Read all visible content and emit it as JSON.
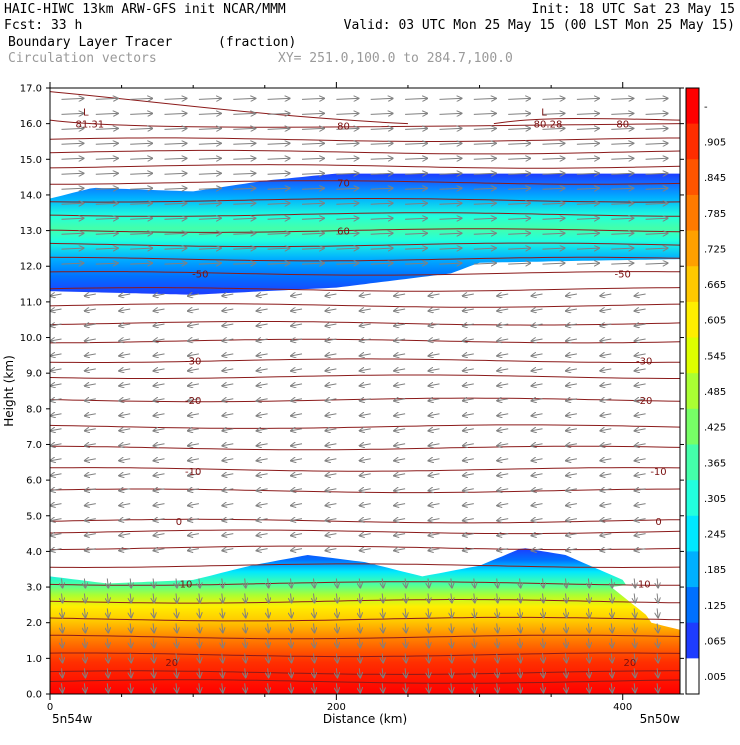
{
  "header": {
    "line1_left": "HAIC-HIWC 13km ARW-GFS init   NCAR/MMM",
    "line1_right": "Init: 18 UTC Sat 23 May 15",
    "line2_left": "Fcst:   33 h",
    "line2_right": "Valid: 03 UTC Mon 25 May 15 (00 LST Mon 25 May 15)",
    "line3_field": "Boundary Layer Tracer",
    "line3_units": "(fraction)",
    "line4_field": "Circulation vectors",
    "line4_xy": "XY= 251.0,100.0 to 284.7,100.0"
  },
  "chart_data": {
    "type": "heatmap",
    "title": "Boundary Layer Tracer (fraction)",
    "xlabel": "Distance (km)",
    "ylabel": "Height (km)",
    "xlim": [
      0,
      440
    ],
    "ylim": [
      0,
      17
    ],
    "x_ticks": [
      0,
      200,
      400
    ],
    "y_ticks": [
      "0.0",
      "1.0",
      "2.0",
      "3.0",
      "4.0",
      "5.0",
      "6.0",
      "7.0",
      "8.0",
      "9.0",
      "10.0",
      "11.0",
      "12.0",
      "13.0",
      "14.0",
      "15.0",
      "16.0",
      "17.0"
    ],
    "x_left_label": "5n54w",
    "x_right_label": "5n50w",
    "colorbar_labels": [
      "-",
      ".905",
      ".845",
      ".785",
      ".725",
      ".665",
      ".605",
      ".545",
      ".485",
      ".425",
      ".365",
      ".305",
      ".245",
      ".185",
      ".125",
      ".065",
      ".005"
    ],
    "colorbar_colors": [
      "#ff0000",
      "#ff2d00",
      "#ff5500",
      "#ff7a00",
      "#ffa000",
      "#ffc800",
      "#ffee00",
      "#ddff00",
      "#aaff33",
      "#77ff66",
      "#44ffaa",
      "#22ffdd",
      "#00e8ff",
      "#00b0ff",
      "#0070ff",
      "#1e3cff",
      "#ffffff"
    ],
    "lower_layer": {
      "top_km_at_x": [
        [
          0,
          3.3
        ],
        [
          40,
          3.1
        ],
        [
          100,
          3.2
        ],
        [
          140,
          3.6
        ],
        [
          180,
          3.9
        ],
        [
          220,
          3.7
        ],
        [
          260,
          3.3
        ],
        [
          300,
          3.6
        ],
        [
          330,
          4.1
        ],
        [
          360,
          3.9
        ],
        [
          400,
          3.2
        ],
        [
          420,
          2.0
        ],
        [
          440,
          1.8
        ]
      ],
      "value_range": [
        0.065,
        1.0
      ]
    },
    "upper_layer": {
      "bottom_km_at_x": [
        [
          0,
          11.3
        ],
        [
          100,
          11.2
        ],
        [
          200,
          11.4
        ],
        [
          280,
          11.8
        ],
        [
          300,
          12.1
        ],
        [
          440,
          12.2
        ]
      ],
      "top_km_at_x": [
        [
          0,
          13.9
        ],
        [
          30,
          14.2
        ],
        [
          100,
          14.1
        ],
        [
          150,
          14.4
        ],
        [
          200,
          14.6
        ],
        [
          440,
          14.6
        ]
      ],
      "value_range": [
        0.065,
        0.3
      ]
    },
    "contour_labels": [
      {
        "text": "80",
        "x_km": 205,
        "y_km": 15.95
      },
      {
        "text": "80",
        "x_km": 400,
        "y_km": 16.0
      },
      {
        "text": "70",
        "x_km": 205,
        "y_km": 14.35
      },
      {
        "text": "60",
        "x_km": 205,
        "y_km": 13.0
      },
      {
        "text": "-50",
        "x_km": 105,
        "y_km": 11.8
      },
      {
        "text": "-50",
        "x_km": 400,
        "y_km": 11.8
      },
      {
        "text": "-30",
        "x_km": 100,
        "y_km": 9.35
      },
      {
        "text": "-30",
        "x_km": 415,
        "y_km": 9.35
      },
      {
        "text": "-20",
        "x_km": 100,
        "y_km": 8.25
      },
      {
        "text": "-20",
        "x_km": 415,
        "y_km": 8.25
      },
      {
        "text": "-10",
        "x_km": 100,
        "y_km": 6.25
      },
      {
        "text": "-10",
        "x_km": 425,
        "y_km": 6.25
      },
      {
        "text": "0",
        "x_km": 90,
        "y_km": 4.85
      },
      {
        "text": "0",
        "x_km": 425,
        "y_km": 4.85
      },
      {
        "text": "10",
        "x_km": 95,
        "y_km": 3.1
      },
      {
        "text": "10",
        "x_km": 415,
        "y_km": 3.1
      },
      {
        "text": "20",
        "x_km": 85,
        "y_km": 0.9
      },
      {
        "text": "20",
        "x_km": 405,
        "y_km": 0.9
      }
    ],
    "low_markers": [
      {
        "text": "L",
        "value": "81.31",
        "x_km": 25,
        "y_km": 16.0
      },
      {
        "text": "L",
        "value": "80.28",
        "x_km": 345,
        "y_km": 16.0
      }
    ],
    "vector_regions": [
      {
        "y_range_km": [
          12.0,
          17.0
        ],
        "direction": "east"
      },
      {
        "y_range_km": [
          4.0,
          11.5
        ],
        "direction": "west"
      },
      {
        "y_range_km": [
          0.0,
          3.5
        ],
        "direction": "down"
      }
    ],
    "grid": false,
    "legend": "colorbar-right"
  }
}
